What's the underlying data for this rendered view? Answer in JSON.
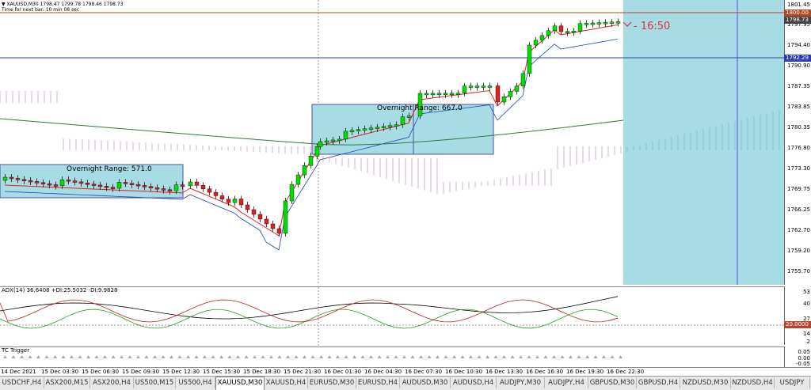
{
  "header": {
    "symbol_line": "▼ XAUUSD,M30  1798.47 1799.78 1798.46 1798.73",
    "timer_line": "Time for next bar: 10 min 08 sec"
  },
  "price_scale": [
    "1801.45",
    "1797.95",
    "1794.40",
    "1790.90",
    "1787.35",
    "1783.85",
    "1780.35",
    "1776.80",
    "1773.30",
    "1769.75",
    "1766.25",
    "1762.70",
    "1759.20",
    "1755.70"
  ],
  "price_flags": {
    "resistance": {
      "label": "1800.00",
      "color": "#b3472a"
    },
    "current": {
      "label": "1798.73",
      "color": "#444444"
    },
    "level": {
      "label": "1792.29",
      "color": "#2a3fb3"
    }
  },
  "countdown": {
    "label": "16:50",
    "color": "#e0303a"
  },
  "boxes": [
    {
      "label": "Overnight Range: 571.0"
    },
    {
      "label": "Overnight Range: 667.0"
    }
  ],
  "adx": {
    "title": "ADX(14) 36.6408 +DI:25.5032 -DI:9.9828",
    "scale": [
      "53",
      "40",
      "27",
      "14",
      "2"
    ],
    "level_flag": "20.0000"
  },
  "tc": {
    "title": "TC Trigger",
    "scale": [
      "0.05",
      "0.00",
      "-0.05"
    ]
  },
  "time_axis": [
    "14 Dec 2021",
    "15 Dec 03:30",
    "15 Dec 06:30",
    "15 Dec 09:30",
    "15 Dec 12:30",
    "15 Dec 15:30",
    "15 Dec 18:30",
    "15 Dec 21:30",
    "16 Dec 01:30",
    "16 Dec 04:30",
    "16 Dec 07:30",
    "16 Dec 10:30",
    "16 Dec 13:30",
    "16 Dec 16:30",
    "16 Dec 19:30",
    "16 Dec 22:30"
  ],
  "tabs": [
    {
      "label": "USDCHF,H4",
      "active": false
    },
    {
      "label": "ASX200,M15",
      "active": false
    },
    {
      "label": "ASX200,H4",
      "active": false
    },
    {
      "label": "US500,M15",
      "active": false
    },
    {
      "label": "US500,H4",
      "active": false
    },
    {
      "label": "XAUUSD,M30",
      "active": true
    },
    {
      "label": "XAUUSD,H4",
      "active": false
    },
    {
      "label": "EURUSD,M30",
      "active": false
    },
    {
      "label": "EURUSD,H4",
      "active": false
    },
    {
      "label": "AUDUSD,M30",
      "active": false
    },
    {
      "label": "AUDUSD,H4",
      "active": false
    },
    {
      "label": "AUDJPY,M30",
      "active": false
    },
    {
      "label": "AUDJPY,H4",
      "active": false
    },
    {
      "label": "GBPUSD,M30",
      "active": false
    },
    {
      "label": "GBPUSD,H4",
      "active": false
    },
    {
      "label": "NZDUSD,M30",
      "active": false
    },
    {
      "label": "NZDUSD,H4",
      "active": false
    },
    {
      "label": "USDJPY",
      "active": false
    }
  ],
  "colors": {
    "bull": "#00e000",
    "bear": "#e02020",
    "cloud_fill": "#a8dce4",
    "box_fill": "#a8dce4",
    "ichimoku_red": "#c080c0",
    "ma_blue": "#2040c0",
    "ma_red": "#e02020",
    "ma_green": "#2a7a3a"
  }
}
